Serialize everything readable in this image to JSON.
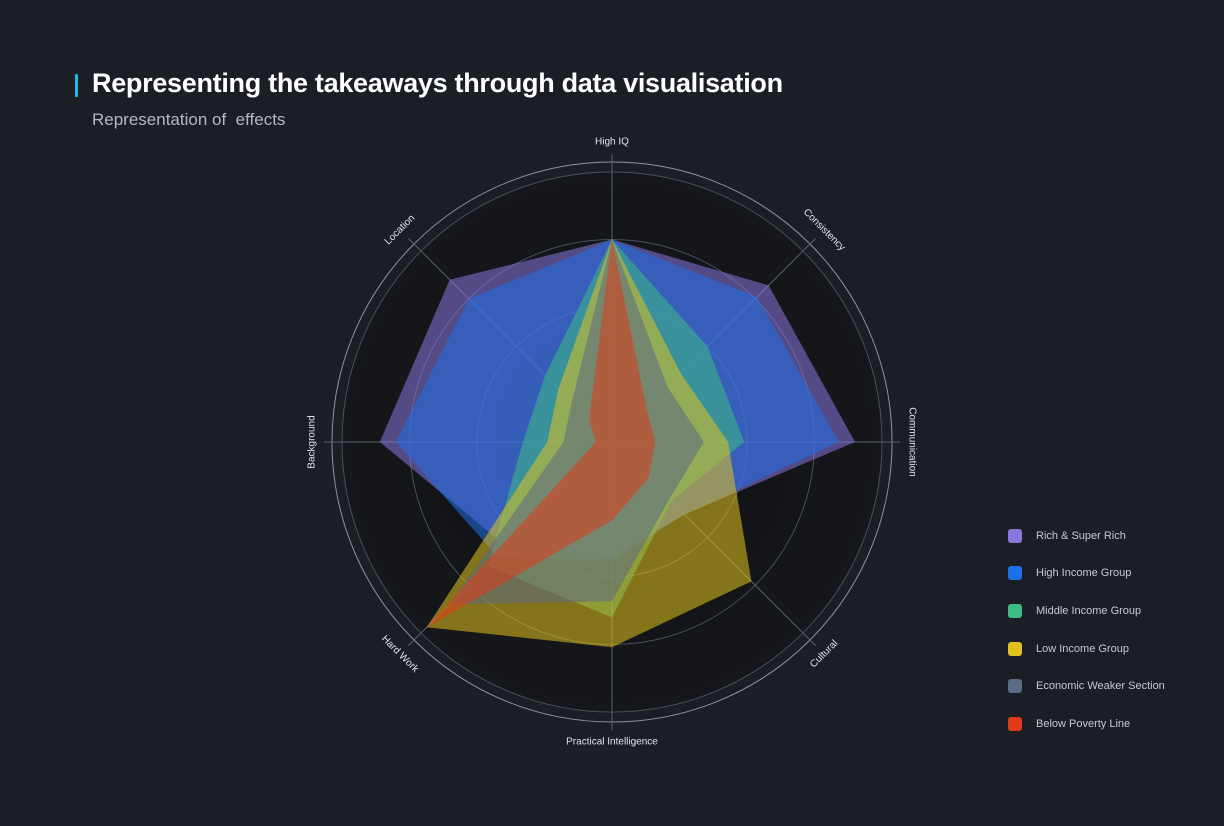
{
  "header": {
    "title": "Representing the takeaways through data visualisation",
    "subtitle": "Representation of  effects"
  },
  "chart_data": {
    "type": "radar",
    "title": "Representing the takeaways through data visualisation",
    "subtitle": "Representation of  effects",
    "axes": [
      "High IQ",
      "Consistency",
      "Communication",
      "Cultural",
      "Practical Intelligence",
      "Hard Work",
      "Background",
      "Location"
    ],
    "range": [
      0,
      10
    ],
    "grid_levels": [
      2.5,
      5,
      7.5,
      10
    ],
    "grid": true,
    "legend_position": "right",
    "series": [
      {
        "name": "Rich & Super Rich",
        "color": "#8878e0",
        "values": [
          7.5,
          8.2,
          9.0,
          3.8,
          4.2,
          5.5,
          8.6,
          8.5
        ]
      },
      {
        "name": "High Income Group",
        "color": "#1f6fe6",
        "values": [
          7.5,
          7.6,
          8.4,
          3.8,
          4.4,
          6.0,
          8.0,
          7.5
        ]
      },
      {
        "name": "Middle Income Group",
        "color": "#3dbb85",
        "values": [
          7.5,
          5.0,
          4.9,
          3.1,
          6.5,
          6.5,
          3.3,
          3.5
        ]
      },
      {
        "name": "Low Income Group",
        "color": "#e2c21e",
        "values": [
          7.5,
          3.6,
          4.3,
          7.3,
          7.6,
          9.7,
          2.4,
          2.8
        ]
      },
      {
        "name": "Economic Weaker Section",
        "color": "#5c6a85",
        "values": [
          7.5,
          2.9,
          3.4,
          3.0,
          5.9,
          8.5,
          1.8,
          2.1
        ]
      },
      {
        "name": "Below Poverty Line",
        "color": "#df3a18",
        "values": [
          7.5,
          1.8,
          1.6,
          1.9,
          2.9,
          9.7,
          0.6,
          1.2
        ]
      }
    ]
  }
}
